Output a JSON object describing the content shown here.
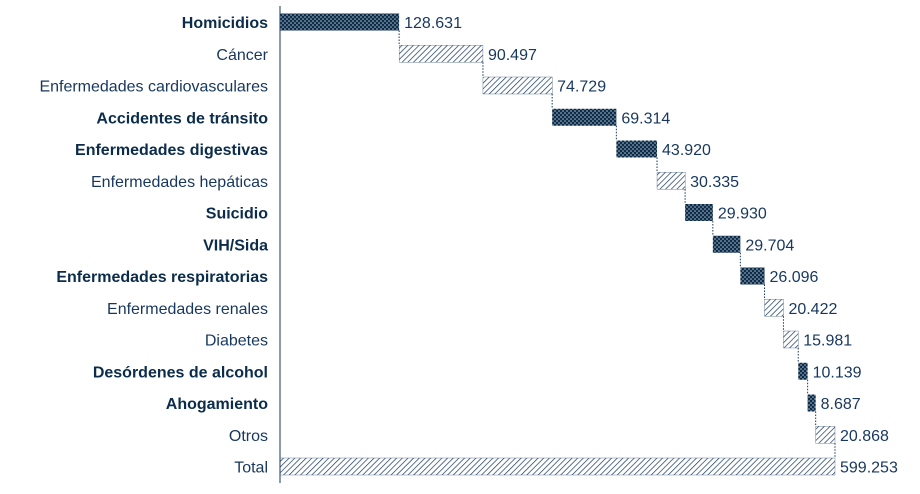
{
  "chart_data": {
    "type": "bar",
    "subtype": "waterfall-horizontal",
    "categories": [
      "Homicidios",
      "Cáncer",
      "Enfermedades cardiovasculares",
      "Accidentes de tránsito",
      "Enfermedades digestivas",
      "Enfermedades hepáticas",
      "Suicidio",
      "VIH/Sida",
      "Enfermedades respiratorias",
      "Enfermedades renales",
      "Diabetes",
      "Desórdenes de alcohol",
      "Ahogamiento",
      "Otros",
      "Total"
    ],
    "values": [
      128631,
      90497,
      74729,
      69314,
      43920,
      30335,
      29930,
      29704,
      26096,
      20422,
      15981,
      10139,
      8687,
      20868,
      599253
    ],
    "value_labels": [
      "128.631",
      "90.497",
      "74.729",
      "69.314",
      "43.920",
      "30.335",
      "29.930",
      "29.704",
      "26.096",
      "20.422",
      "15.981",
      "10.139",
      "8.687",
      "20.868",
      "599.253"
    ],
    "highlighted": [
      true,
      false,
      false,
      true,
      true,
      false,
      true,
      true,
      true,
      false,
      false,
      true,
      true,
      false,
      false
    ],
    "is_total": [
      false,
      false,
      false,
      false,
      false,
      false,
      false,
      false,
      false,
      false,
      false,
      false,
      false,
      false,
      true
    ],
    "xlim": [
      0,
      599253
    ],
    "grid": false,
    "legend": "none",
    "colors": {
      "highlight": "#0b2c4a",
      "hatch": "#17375e",
      "label": "#17375e"
    }
  }
}
